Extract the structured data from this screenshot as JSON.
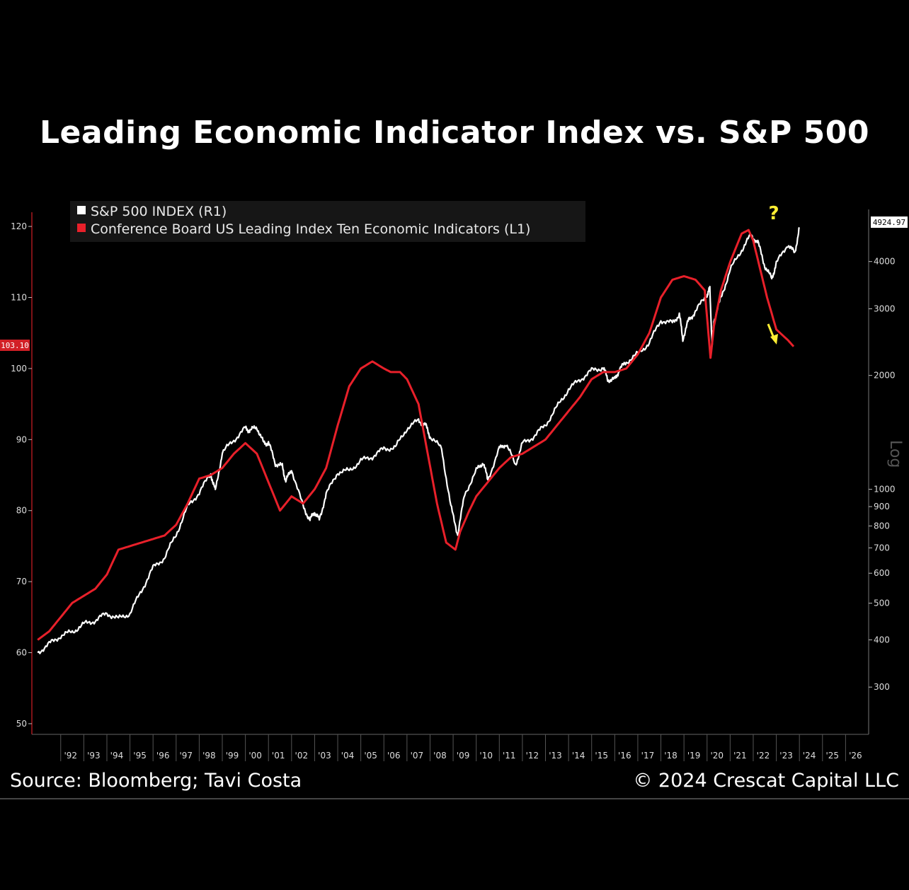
{
  "title": "Leading Economic Indicator Index vs. S&P 500",
  "source": "Source: Bloomberg; Tavi Costa",
  "copyright": "© 2024 Crescat Capital LLC",
  "chart_data": {
    "type": "line",
    "title": "Leading Economic Indicator Index vs. S&P 500",
    "x_tick_labels": [
      "'92",
      "'93",
      "'94",
      "'95",
      "'96",
      "'97",
      "'98",
      "'99",
      "'00",
      "'01",
      "'02",
      "'03",
      "'04",
      "'05",
      "'06",
      "'07",
      "'08",
      "'09",
      "'10",
      "'11",
      "'12",
      "'13",
      "'14",
      "'15",
      "'16",
      "'17",
      "'18",
      "'19",
      "'20",
      "'21",
      "'22",
      "'23",
      "'24",
      "'25",
      "'26"
    ],
    "x_tick_years": [
      1992,
      1993,
      1994,
      1995,
      1996,
      1997,
      1998,
      1999,
      2000,
      2001,
      2002,
      2003,
      2004,
      2005,
      2006,
      2007,
      2008,
      2009,
      2010,
      2011,
      2012,
      2013,
      2014,
      2015,
      2016,
      2017,
      2018,
      2019,
      2020,
      2021,
      2022,
      2023,
      2024,
      2025,
      2026
    ],
    "xlim": [
      1990.75,
      2027.0
    ],
    "left_axis": {
      "ticks": [
        50,
        60,
        70,
        80,
        90,
        100,
        110,
        120
      ],
      "ylim": [
        48.5,
        122
      ],
      "current_value_label": "103.10",
      "current_value": 103.1
    },
    "right_axis": {
      "scale": "log",
      "label": "Log",
      "ticks": [
        300,
        400,
        500,
        600,
        700,
        800,
        900,
        1000,
        2000,
        3000,
        4000
      ],
      "ylim": [
        225,
        5400
      ],
      "current_value_label": "4924.97",
      "current_value": 4924.97
    },
    "legend": {
      "placement": "top-left"
    },
    "series": [
      {
        "name": "S&P 500 INDEX  (R1)",
        "axis": "right",
        "color": "#ffffff",
        "x": [
          1991.0,
          1991.5,
          1992.0,
          1992.5,
          1993.0,
          1993.5,
          1994.0,
          1994.5,
          1995.0,
          1995.5,
          1996.0,
          1996.5,
          1997.0,
          1997.5,
          1998.0,
          1998.5,
          1998.7,
          1999.0,
          1999.5,
          2000.0,
          2000.2,
          2000.5,
          2000.8,
          2001.0,
          2001.3,
          2001.6,
          2001.75,
          2002.0,
          2002.5,
          2002.8,
          2003.0,
          2003.2,
          2003.5,
          2004.0,
          2004.5,
          2005.0,
          2005.5,
          2006.0,
          2006.5,
          2007.0,
          2007.5,
          2007.8,
          2008.0,
          2008.5,
          2008.9,
          2009.2,
          2009.5,
          2010.0,
          2010.3,
          2010.5,
          2011.0,
          2011.3,
          2011.7,
          2012.0,
          2012.5,
          2013.0,
          2013.5,
          2014.0,
          2014.5,
          2015.0,
          2015.5,
          2015.7,
          2016.0,
          2016.2,
          2016.5,
          2017.0,
          2017.5,
          2018.0,
          2018.5,
          2018.8,
          2018.95,
          2019.2,
          2019.5,
          2020.0,
          2020.12,
          2020.22,
          2020.3,
          2020.6,
          2021.0,
          2021.5,
          2021.9,
          2022.2,
          2022.5,
          2022.8,
          2023.0,
          2023.5,
          2023.8,
          2024.0
        ],
        "y": [
          370,
          390,
          410,
          420,
          440,
          450,
          470,
          455,
          470,
          540,
          620,
          660,
          760,
          900,
          980,
          1100,
          990,
          1250,
          1350,
          1450,
          1430,
          1460,
          1320,
          1330,
          1170,
          1150,
          1050,
          1130,
          900,
          830,
          870,
          830,
          970,
          1110,
          1120,
          1190,
          1220,
          1280,
          1290,
          1450,
          1520,
          1480,
          1380,
          1280,
          900,
          760,
          970,
          1120,
          1180,
          1060,
          1280,
          1320,
          1160,
          1320,
          1380,
          1480,
          1650,
          1840,
          1950,
          2060,
          2100,
          1950,
          1950,
          2070,
          2170,
          2280,
          2440,
          2800,
          2750,
          2900,
          2500,
          2800,
          2950,
          3280,
          3380,
          2400,
          2800,
          3200,
          3800,
          4300,
          4700,
          4500,
          3900,
          3600,
          3950,
          4450,
          4200,
          4924.97
        ]
      },
      {
        "name": "Conference Board US Leading Index Ten Economic Indicators  (L1)",
        "axis": "left",
        "color": "#e8202a",
        "x": [
          1991.0,
          1991.5,
          1992.0,
          1992.5,
          1993.0,
          1993.5,
          1994.0,
          1994.5,
          1995.0,
          1995.5,
          1996.0,
          1996.5,
          1997.0,
          1997.5,
          1998.0,
          1998.5,
          1999.0,
          1999.5,
          2000.0,
          2000.5,
          2001.0,
          2001.5,
          2002.0,
          2002.5,
          2003.0,
          2003.5,
          2004.0,
          2004.5,
          2005.0,
          2005.5,
          2006.0,
          2006.3,
          2006.7,
          2007.0,
          2007.5,
          2007.9,
          2008.3,
          2008.7,
          2009.1,
          2009.3,
          2009.7,
          2010.0,
          2010.5,
          2011.0,
          2011.5,
          2012.0,
          2012.5,
          2013.0,
          2013.5,
          2014.0,
          2014.5,
          2015.0,
          2015.5,
          2016.0,
          2016.5,
          2017.0,
          2017.5,
          2018.0,
          2018.5,
          2019.0,
          2019.5,
          2019.9,
          2020.15,
          2020.3,
          2020.6,
          2021.0,
          2021.5,
          2021.8,
          2022.0,
          2022.3,
          2022.6,
          2023.0,
          2023.5,
          2023.75
        ],
        "y": [
          61.8,
          63,
          65,
          67,
          68,
          69,
          71,
          74.5,
          75,
          75.5,
          76,
          76.5,
          78,
          81,
          84.5,
          85,
          86,
          88,
          89.5,
          88,
          84,
          80,
          82,
          81,
          83,
          86,
          92,
          97.5,
          100,
          101,
          100,
          99.5,
          99.5,
          98.5,
          95,
          88,
          81,
          75.5,
          74.5,
          77,
          80,
          82,
          84,
          86,
          87.5,
          88,
          89,
          90,
          92,
          94,
          96,
          98.5,
          99.5,
          99.5,
          100,
          102,
          105,
          110,
          112.5,
          113,
          112.5,
          111,
          101.5,
          106,
          111,
          115,
          119,
          119.5,
          118,
          114,
          110,
          105.5,
          104,
          103.1
        ]
      }
    ],
    "annotations": [
      {
        "text": "?",
        "color": "#ffee33"
      },
      {
        "text": "arrow-down-right",
        "color": "#ffee33"
      }
    ]
  }
}
